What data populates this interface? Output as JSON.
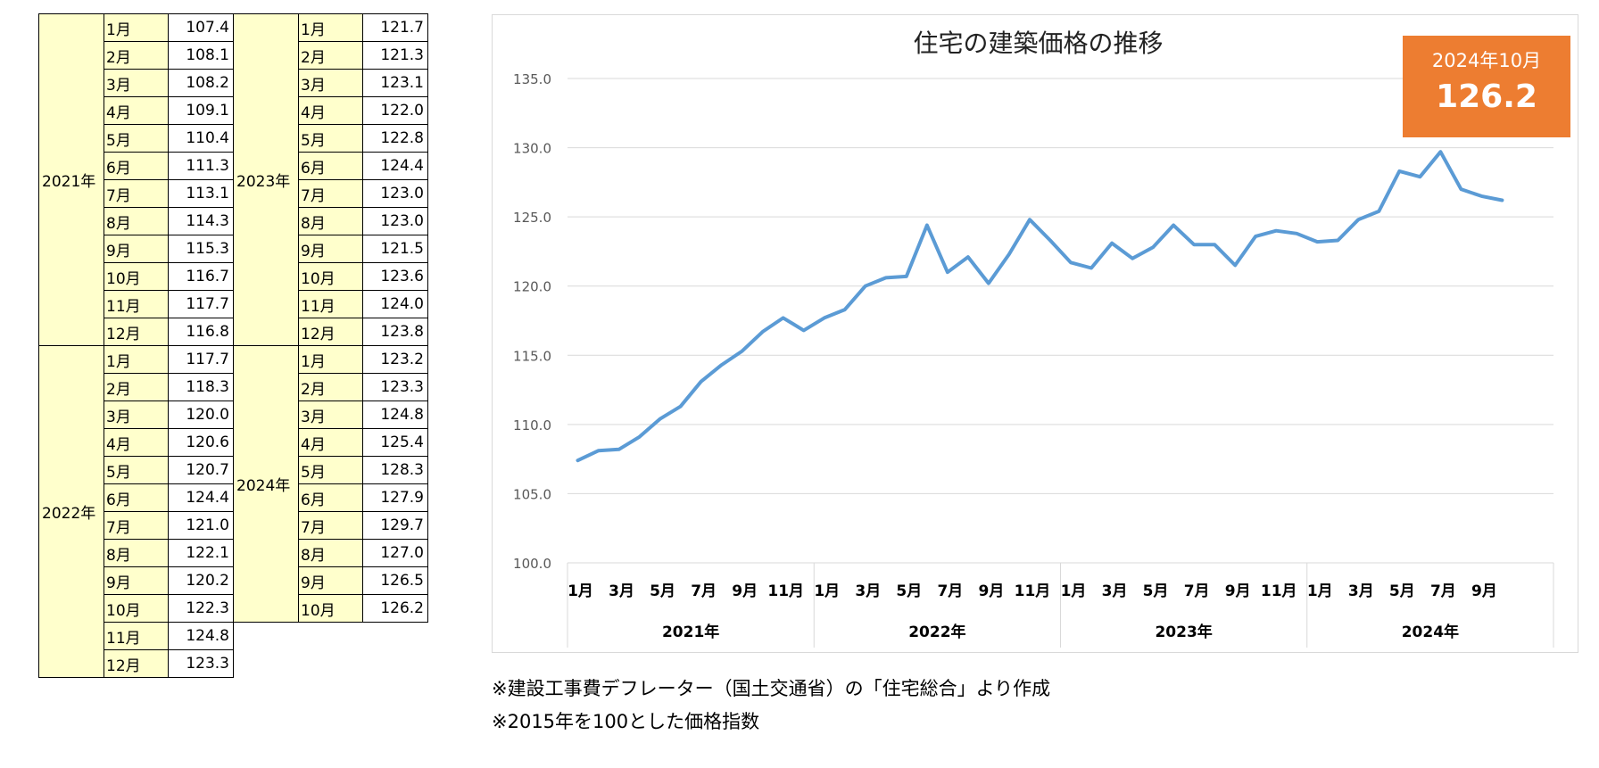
{
  "tables": {
    "left": [
      {
        "year": "2021年",
        "rows": [
          {
            "month": "1月",
            "value": "107.4"
          },
          {
            "month": "2月",
            "value": "108.1"
          },
          {
            "month": "3月",
            "value": "108.2"
          },
          {
            "month": "4月",
            "value": "109.1"
          },
          {
            "month": "5月",
            "value": "110.4"
          },
          {
            "month": "6月",
            "value": "111.3"
          },
          {
            "month": "7月",
            "value": "113.1"
          },
          {
            "month": "8月",
            "value": "114.3"
          },
          {
            "month": "9月",
            "value": "115.3"
          },
          {
            "month": "10月",
            "value": "116.7"
          },
          {
            "month": "11月",
            "value": "117.7"
          },
          {
            "month": "12月",
            "value": "116.8"
          }
        ]
      },
      {
        "year": "2022年",
        "rows": [
          {
            "month": "1月",
            "value": "117.7"
          },
          {
            "month": "2月",
            "value": "118.3"
          },
          {
            "month": "3月",
            "value": "120.0"
          },
          {
            "month": "4月",
            "value": "120.6"
          },
          {
            "month": "5月",
            "value": "120.7"
          },
          {
            "month": "6月",
            "value": "124.4"
          },
          {
            "month": "7月",
            "value": "121.0"
          },
          {
            "month": "8月",
            "value": "122.1"
          },
          {
            "month": "9月",
            "value": "120.2"
          },
          {
            "month": "10月",
            "value": "122.3"
          },
          {
            "month": "11月",
            "value": "124.8"
          },
          {
            "month": "12月",
            "value": "123.3"
          }
        ]
      }
    ],
    "right": [
      {
        "year": "2023年",
        "rows": [
          {
            "month": "1月",
            "value": "121.7"
          },
          {
            "month": "2月",
            "value": "121.3"
          },
          {
            "month": "3月",
            "value": "123.1"
          },
          {
            "month": "4月",
            "value": "122.0"
          },
          {
            "month": "5月",
            "value": "122.8"
          },
          {
            "month": "6月",
            "value": "124.4"
          },
          {
            "month": "7月",
            "value": "123.0"
          },
          {
            "month": "8月",
            "value": "123.0"
          },
          {
            "month": "9月",
            "value": "121.5"
          },
          {
            "month": "10月",
            "value": "123.6"
          },
          {
            "month": "11月",
            "value": "124.0"
          },
          {
            "month": "12月",
            "value": "123.8"
          }
        ]
      },
      {
        "year": "2024年",
        "rows": [
          {
            "month": "1月",
            "value": "123.2"
          },
          {
            "month": "2月",
            "value": "123.3"
          },
          {
            "month": "3月",
            "value": "124.8"
          },
          {
            "month": "4月",
            "value": "125.4"
          },
          {
            "month": "5月",
            "value": "128.3"
          },
          {
            "month": "6月",
            "value": "127.9"
          },
          {
            "month": "7月",
            "value": "129.7"
          },
          {
            "month": "8月",
            "value": "127.0"
          },
          {
            "month": "9月",
            "value": "126.5"
          },
          {
            "month": "10月",
            "value": "126.2"
          }
        ]
      }
    ]
  },
  "callout": {
    "label": "2024年10月",
    "value": "126.2",
    "color": "#ed7d31"
  },
  "notes": [
    "※建設工事費デフレーター（国土交通省）の「住宅総合」より作成",
    "※2015年を100とした価格指数"
  ],
  "chart_data": {
    "type": "line",
    "title": "住宅の建築価格の推移",
    "xlabel": "",
    "ylabel": "",
    "ylim": [
      100,
      135
    ],
    "yticks": [
      "100.0",
      "105.0",
      "110.0",
      "115.0",
      "120.0",
      "125.0",
      "130.0",
      "135.0"
    ],
    "grid": true,
    "line_color": "#5b9bd5",
    "year_groups": [
      "2021年",
      "2022年",
      "2023年",
      "2024年"
    ],
    "month_tick_labels": [
      "1月",
      "3月",
      "5月",
      "7月",
      "9月",
      "11月"
    ],
    "x": [
      "2021-01",
      "2021-02",
      "2021-03",
      "2021-04",
      "2021-05",
      "2021-06",
      "2021-07",
      "2021-08",
      "2021-09",
      "2021-10",
      "2021-11",
      "2021-12",
      "2022-01",
      "2022-02",
      "2022-03",
      "2022-04",
      "2022-05",
      "2022-06",
      "2022-07",
      "2022-08",
      "2022-09",
      "2022-10",
      "2022-11",
      "2022-12",
      "2023-01",
      "2023-02",
      "2023-03",
      "2023-04",
      "2023-05",
      "2023-06",
      "2023-07",
      "2023-08",
      "2023-09",
      "2023-10",
      "2023-11",
      "2023-12",
      "2024-01",
      "2024-02",
      "2024-03",
      "2024-04",
      "2024-05",
      "2024-06",
      "2024-07",
      "2024-08",
      "2024-09",
      "2024-10"
    ],
    "values": [
      107.4,
      108.1,
      108.2,
      109.1,
      110.4,
      111.3,
      113.1,
      114.3,
      115.3,
      116.7,
      117.7,
      116.8,
      117.7,
      118.3,
      120.0,
      120.6,
      120.7,
      124.4,
      121.0,
      122.1,
      120.2,
      122.3,
      124.8,
      123.3,
      121.7,
      121.3,
      123.1,
      122.0,
      122.8,
      124.4,
      123.0,
      123.0,
      121.5,
      123.6,
      124.0,
      123.8,
      123.2,
      123.3,
      124.8,
      125.4,
      128.3,
      127.9,
      129.7,
      127.0,
      126.5,
      126.2
    ]
  }
}
